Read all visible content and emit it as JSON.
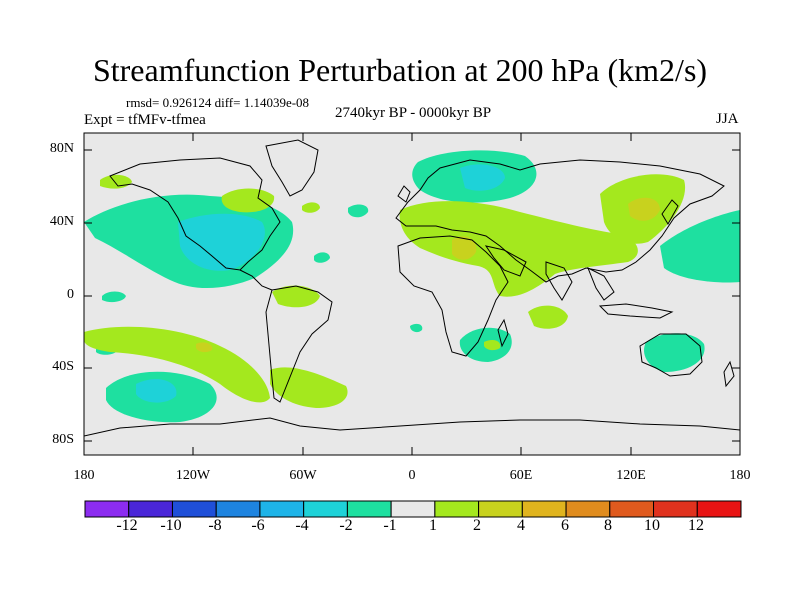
{
  "header": {
    "title": "Streamfunction Perturbation at 200 hPa (km2/s)",
    "stats": "rmsd= 0.926124 diff= 1.14039e-08",
    "left_label": "Expt = tfMFv-tfmea",
    "center_label": "2740kyr BP - 0000kyr BP",
    "right_label": "JJA"
  },
  "axes": {
    "y_ticks": [
      "80N",
      "40N",
      "0",
      "40S",
      "80S"
    ],
    "x_ticks": [
      "180",
      "120W",
      "60W",
      "0",
      "60E",
      "120E",
      "180"
    ]
  },
  "colorbar": {
    "labels": [
      "-12",
      "-10",
      "-8",
      "-6",
      "-4",
      "-2",
      "-1",
      "1",
      "2",
      "4",
      "6",
      "8",
      "10",
      "12"
    ],
    "colors": [
      "#8c2cf0",
      "#4a26d8",
      "#1f4fd8",
      "#1e84e0",
      "#1eb4e8",
      "#1ed2d8",
      "#1ee0a0",
      "#e8e8e8",
      "#a4e81e",
      "#c8d21e",
      "#e0b41e",
      "#e08c1e",
      "#e05a1e",
      "#e0321e",
      "#e81414"
    ]
  },
  "colors": {
    "background_land": "#e8e8e8",
    "neg_1_2": "#1ee0a0",
    "neg_2_4": "#1ed2d8",
    "pos_1_2": "#a4e81e",
    "pos_2_4": "#c8d21e"
  }
}
